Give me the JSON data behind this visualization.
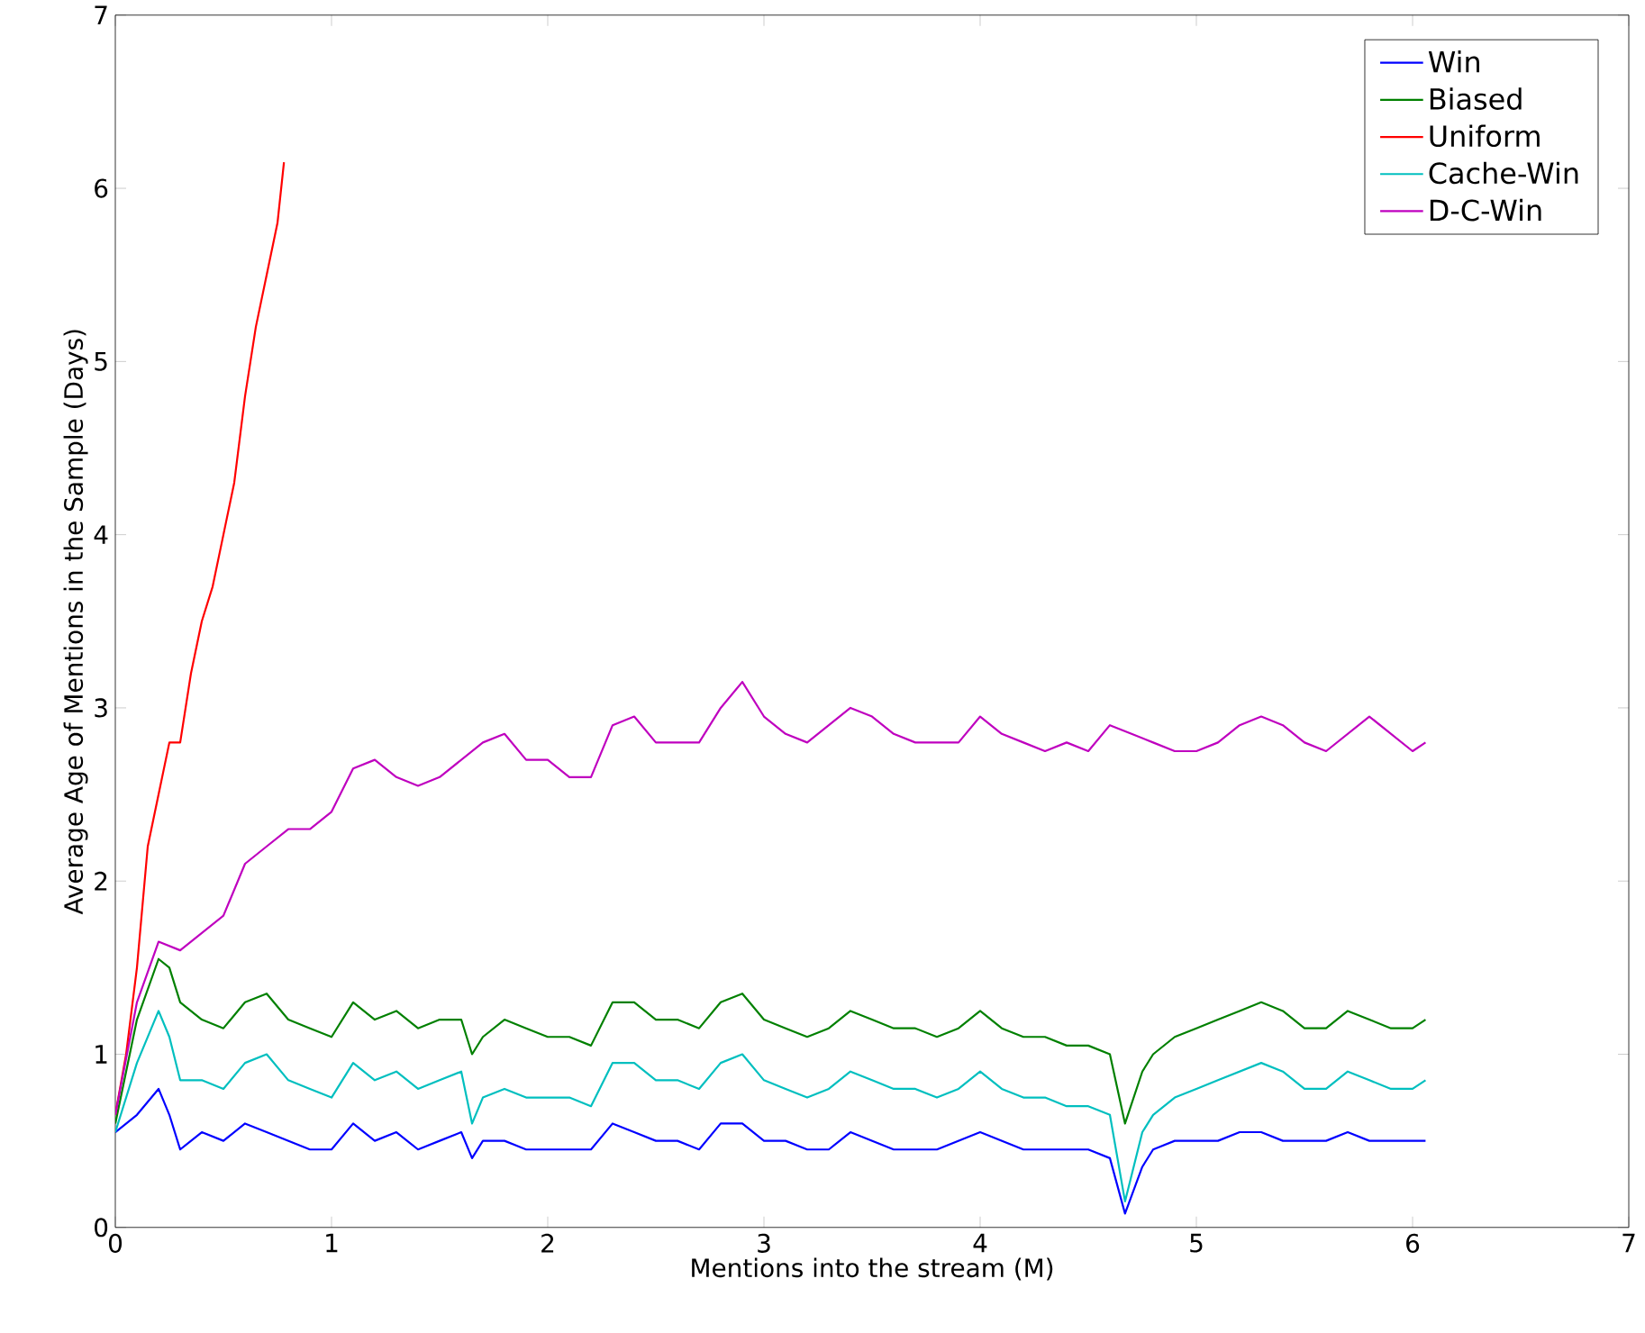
{
  "chart_data": {
    "type": "line",
    "xlabel": "Mentions into the stream (M)",
    "ylabel": "Average Age of Mentions in the Sample (Days)",
    "xlim": [
      0,
      7
    ],
    "ylim": [
      0,
      7
    ],
    "xticks": [
      0,
      1,
      2,
      3,
      4,
      5,
      6,
      7
    ],
    "yticks": [
      0,
      1,
      2,
      3,
      4,
      5,
      6,
      7
    ],
    "grid": false,
    "legend": "top right",
    "x": [
      0,
      0.1,
      0.2,
      0.25,
      0.3,
      0.4,
      0.5,
      0.6,
      0.7,
      0.8,
      0.9,
      1.0,
      1.1,
      1.2,
      1.3,
      1.4,
      1.5,
      1.6,
      1.65,
      1.7,
      1.8,
      1.9,
      2.0,
      2.1,
      2.2,
      2.3,
      2.4,
      2.5,
      2.6,
      2.7,
      2.8,
      2.9,
      3.0,
      3.1,
      3.2,
      3.3,
      3.4,
      3.5,
      3.6,
      3.7,
      3.8,
      3.9,
      4.0,
      4.1,
      4.2,
      4.3,
      4.4,
      4.5,
      4.6,
      4.67,
      4.75,
      4.8,
      4.9,
      5.0,
      5.1,
      5.2,
      5.3,
      5.4,
      5.5,
      5.6,
      5.7,
      5.8,
      5.9,
      6.0,
      6.06
    ],
    "series": [
      {
        "name": "Win",
        "color": "#0000ff",
        "values": [
          0.55,
          0.65,
          0.8,
          0.65,
          0.45,
          0.55,
          0.5,
          0.6,
          0.55,
          0.5,
          0.45,
          0.45,
          0.6,
          0.5,
          0.55,
          0.45,
          0.5,
          0.55,
          0.4,
          0.5,
          0.5,
          0.45,
          0.45,
          0.45,
          0.45,
          0.6,
          0.55,
          0.5,
          0.5,
          0.45,
          0.6,
          0.6,
          0.5,
          0.5,
          0.45,
          0.45,
          0.55,
          0.5,
          0.45,
          0.45,
          0.45,
          0.5,
          0.55,
          0.5,
          0.45,
          0.45,
          0.45,
          0.45,
          0.4,
          0.08,
          0.35,
          0.45,
          0.5,
          0.5,
          0.5,
          0.55,
          0.55,
          0.5,
          0.5,
          0.5,
          0.55,
          0.5,
          0.5,
          0.5,
          0.5
        ]
      },
      {
        "name": "Biased",
        "color": "#008000",
        "values": [
          0.6,
          1.2,
          1.55,
          1.5,
          1.3,
          1.2,
          1.15,
          1.3,
          1.35,
          1.2,
          1.15,
          1.1,
          1.3,
          1.2,
          1.25,
          1.15,
          1.2,
          1.2,
          1.0,
          1.1,
          1.2,
          1.15,
          1.1,
          1.1,
          1.05,
          1.3,
          1.3,
          1.2,
          1.2,
          1.15,
          1.3,
          1.35,
          1.2,
          1.15,
          1.1,
          1.15,
          1.25,
          1.2,
          1.15,
          1.15,
          1.1,
          1.15,
          1.25,
          1.15,
          1.1,
          1.1,
          1.05,
          1.05,
          1.0,
          0.6,
          0.9,
          1.0,
          1.1,
          1.15,
          1.2,
          1.25,
          1.3,
          1.25,
          1.15,
          1.15,
          1.25,
          1.2,
          1.15,
          1.15,
          1.2
        ]
      },
      {
        "name": "Uniform",
        "color": "#ff0000",
        "x": [
          0,
          0.05,
          0.1,
          0.15,
          0.2,
          0.25,
          0.3,
          0.35,
          0.4,
          0.45,
          0.5,
          0.55,
          0.6,
          0.65,
          0.7,
          0.75,
          0.78
        ],
        "values": [
          0.65,
          1.0,
          1.5,
          2.2,
          2.5,
          2.8,
          2.8,
          3.2,
          3.5,
          3.7,
          4.0,
          4.3,
          4.8,
          5.2,
          5.5,
          5.8,
          6.15
        ]
      },
      {
        "name": "Cache-Win",
        "color": "#00bfbf",
        "values": [
          0.55,
          0.95,
          1.25,
          1.1,
          0.85,
          0.85,
          0.8,
          0.95,
          1.0,
          0.85,
          0.8,
          0.75,
          0.95,
          0.85,
          0.9,
          0.8,
          0.85,
          0.9,
          0.6,
          0.75,
          0.8,
          0.75,
          0.75,
          0.75,
          0.7,
          0.95,
          0.95,
          0.85,
          0.85,
          0.8,
          0.95,
          1.0,
          0.85,
          0.8,
          0.75,
          0.8,
          0.9,
          0.85,
          0.8,
          0.8,
          0.75,
          0.8,
          0.9,
          0.8,
          0.75,
          0.75,
          0.7,
          0.7,
          0.65,
          0.15,
          0.55,
          0.65,
          0.75,
          0.8,
          0.85,
          0.9,
          0.95,
          0.9,
          0.8,
          0.8,
          0.9,
          0.85,
          0.8,
          0.8,
          0.85
        ]
      },
      {
        "name": "D-C-Win",
        "color": "#bf00bf",
        "x": [
          0,
          0.1,
          0.2,
          0.3,
          0.4,
          0.5,
          0.6,
          0.7,
          0.8,
          0.9,
          1.0,
          1.1,
          1.2,
          1.3,
          1.4,
          1.5,
          1.6,
          1.7,
          1.8,
          1.9,
          2.0,
          2.1,
          2.2,
          2.3,
          2.4,
          2.5,
          2.6,
          2.7,
          2.8,
          2.9,
          3.0,
          3.1,
          3.2,
          3.3,
          3.4,
          3.5,
          3.6,
          3.7,
          3.8,
          3.9,
          4.0,
          4.1,
          4.2,
          4.3,
          4.4,
          4.5,
          4.6,
          4.7,
          4.8,
          4.9,
          5.0,
          5.1,
          5.2,
          5.3,
          5.4,
          5.5,
          5.6,
          5.7,
          5.8,
          5.9,
          6.0,
          6.06
        ],
        "values": [
          0.65,
          1.3,
          1.65,
          1.6,
          1.7,
          1.8,
          2.1,
          2.2,
          2.3,
          2.3,
          2.4,
          2.65,
          2.7,
          2.6,
          2.55,
          2.6,
          2.7,
          2.8,
          2.85,
          2.7,
          2.7,
          2.6,
          2.6,
          2.9,
          2.95,
          2.8,
          2.8,
          2.8,
          3.0,
          3.15,
          2.95,
          2.85,
          2.8,
          2.9,
          3.0,
          2.95,
          2.85,
          2.8,
          2.8,
          2.8,
          2.95,
          2.85,
          2.8,
          2.75,
          2.8,
          2.75,
          2.9,
          2.85,
          2.8,
          2.75,
          2.75,
          2.8,
          2.9,
          2.95,
          2.9,
          2.8,
          2.75,
          2.85,
          2.95,
          2.85,
          2.75,
          2.8
        ]
      }
    ]
  }
}
